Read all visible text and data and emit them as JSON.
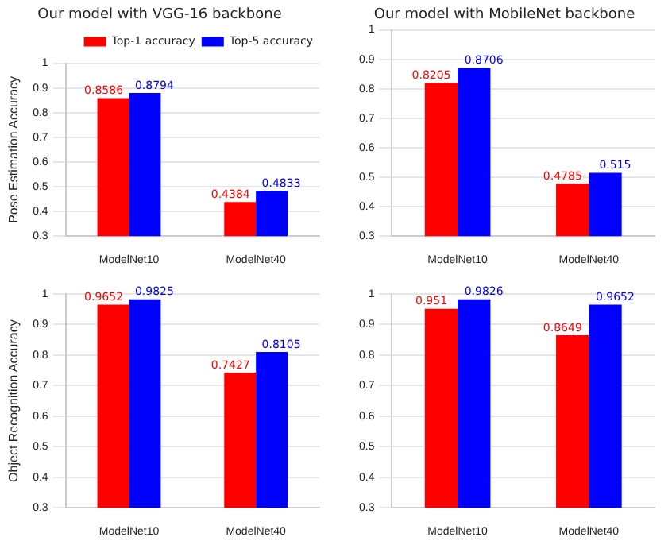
{
  "chart_data": [
    {
      "type": "bar",
      "title": "Our model with VGG-16 backbone",
      "ylabel": "Pose Estimation Accuracy",
      "categories": [
        "ModelNet10",
        "ModelNet40"
      ],
      "series": [
        {
          "name": "Top-1 accuracy",
          "color": "#ff0000",
          "values": [
            0.8586,
            0.4384
          ]
        },
        {
          "name": "Top-5 accuracy",
          "color": "#0000ff",
          "values": [
            0.8794,
            0.4833
          ]
        }
      ],
      "ylim": [
        0.3,
        1.0
      ],
      "yticks": [
        0.3,
        0.4,
        0.5,
        0.6,
        0.7,
        0.8,
        0.9,
        1.0
      ],
      "grid": "y",
      "legend": "top right",
      "data_labels": true
    },
    {
      "type": "bar",
      "title": "Our model with MobileNet backbone",
      "categories": [
        "ModelNet10",
        "ModelNet40"
      ],
      "series": [
        {
          "color": "#ff0000",
          "values": [
            0.8205,
            0.4785
          ]
        },
        {
          "color": "#0000ff",
          "values": [
            0.8706,
            0.515
          ]
        }
      ],
      "ylim": [
        0.3,
        1.0
      ],
      "yticks": [
        0.3,
        0.4,
        0.5,
        0.6,
        0.7,
        0.8,
        0.9,
        1.0
      ],
      "grid": "y",
      "data_labels": true
    },
    {
      "type": "bar",
      "ylabel": "Object Recognition Accuracy",
      "categories": [
        "ModelNet10",
        "ModelNet40"
      ],
      "series": [
        {
          "color": "#ff0000",
          "values": [
            0.9652,
            0.7427
          ]
        },
        {
          "color": "#0000ff",
          "values": [
            0.9825,
            0.8105
          ]
        }
      ],
      "ylim": [
        0.3,
        1.0
      ],
      "yticks": [
        0.3,
        0.4,
        0.5,
        0.6,
        0.7,
        0.8,
        0.9,
        1.0
      ],
      "grid": "y",
      "data_labels": true
    },
    {
      "type": "bar",
      "categories": [
        "ModelNet10",
        "ModelNet40"
      ],
      "series": [
        {
          "color": "#ff0000",
          "values": [
            0.951,
            0.8649
          ]
        },
        {
          "color": "#0000ff",
          "values": [
            0.9826,
            0.9652
          ]
        }
      ],
      "ylim": [
        0.3,
        1.0
      ],
      "yticks": [
        0.3,
        0.4,
        0.5,
        0.6,
        0.7,
        0.8,
        0.9,
        1.0
      ],
      "grid": "y",
      "data_labels": true
    }
  ]
}
